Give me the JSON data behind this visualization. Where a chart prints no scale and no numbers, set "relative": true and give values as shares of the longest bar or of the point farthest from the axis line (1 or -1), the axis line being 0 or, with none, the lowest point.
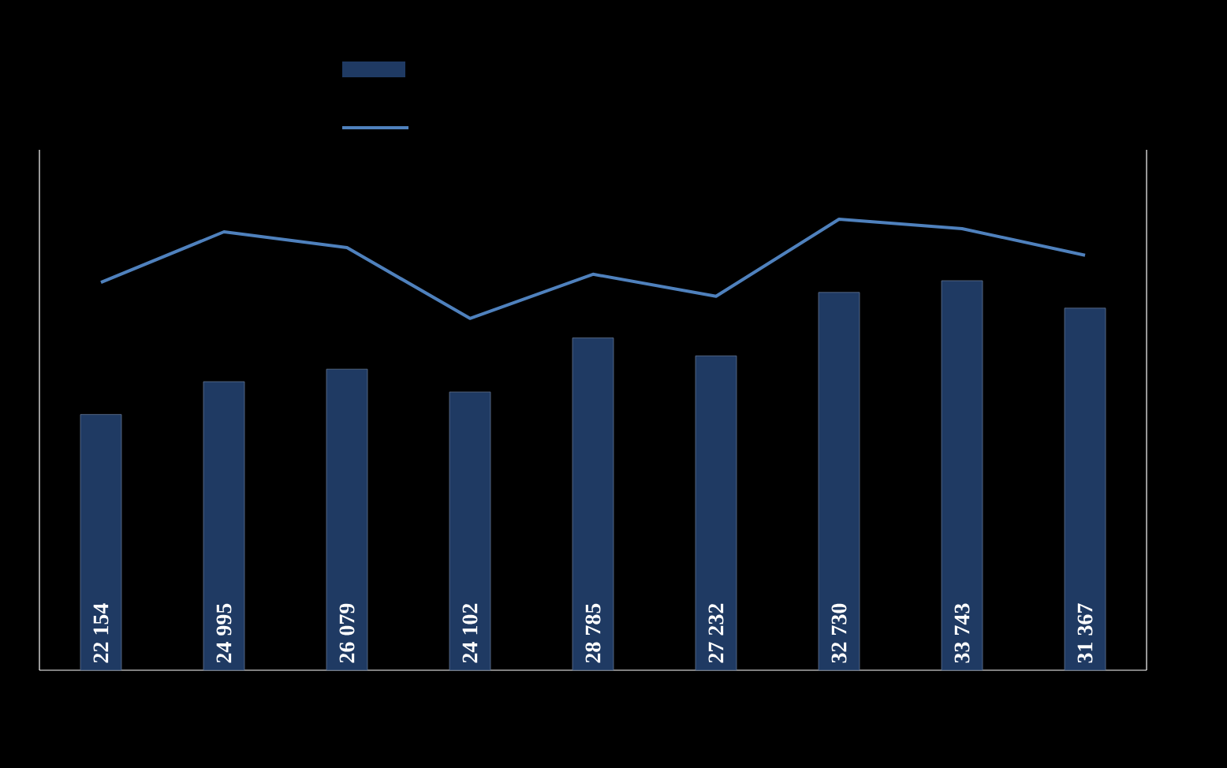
{
  "chart_data": [
    {
      "type": "bar",
      "categories": [
        null,
        null,
        null,
        null,
        null,
        null,
        null,
        null,
        null
      ],
      "color": "#1f3a63",
      "values": [
        22154,
        24995,
        26079,
        24102,
        28785,
        27232,
        32730,
        33743,
        31367
      ],
      "value_labels": [
        "22 154",
        "24 995",
        "26 079",
        "24 102",
        "28 785",
        "27 232",
        "32 730",
        "33 743",
        "31 367"
      ]
    },
    {
      "type": "line",
      "relative": true,
      "categories": [
        null,
        null,
        null,
        null,
        null,
        null,
        null,
        null,
        null
      ],
      "color": "#4f81bd",
      "values": [
        0.86,
        0.972,
        0.937,
        0.78,
        0.878,
        0.829,
        1,
        0.979,
        0.92
      ]
    }
  ]
}
